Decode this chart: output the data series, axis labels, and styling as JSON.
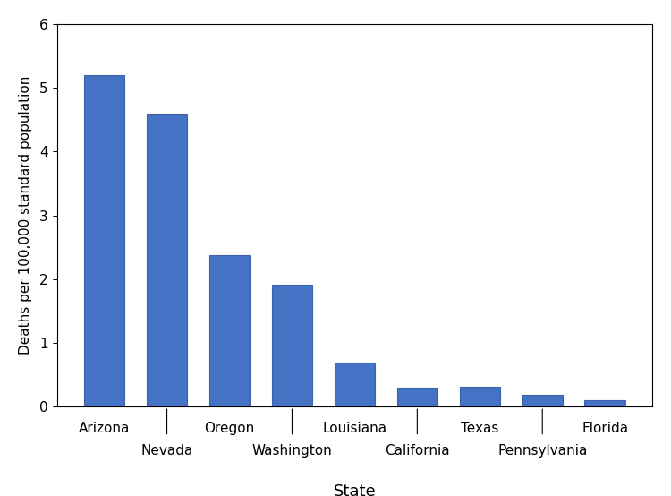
{
  "categories": [
    "Arizona",
    "Nevada",
    "Oregon",
    "Washington",
    "Louisiana",
    "California",
    "Texas",
    "Pennsylvania",
    "Florida"
  ],
  "values": [
    5.2,
    4.6,
    2.38,
    1.91,
    0.69,
    0.3,
    0.31,
    0.19,
    0.1
  ],
  "bar_color": "#4472C4",
  "bar_edgecolor": "#3A63A8",
  "xlabel": "State",
  "ylabel": "Deaths per 100,000 standard population",
  "ylim": [
    0,
    6
  ],
  "yticks": [
    0,
    1,
    2,
    3,
    4,
    5,
    6
  ],
  "figsize": [
    7.5,
    5.54
  ],
  "dpi": 100,
  "background_color": "#ffffff",
  "xlabel_fontsize": 13,
  "ylabel_fontsize": 11,
  "tick_labelsize": 11,
  "bar_width": 0.65
}
